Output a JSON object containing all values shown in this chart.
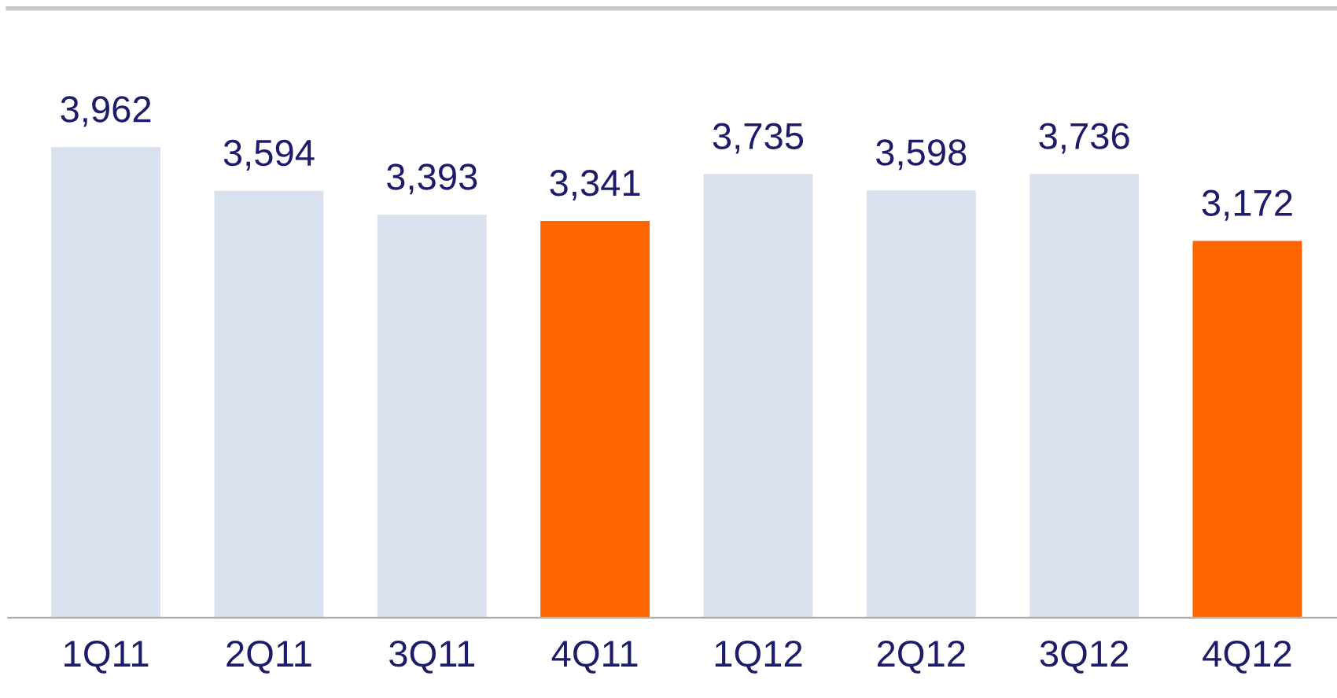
{
  "chart_data": {
    "type": "bar",
    "categories": [
      "1Q11",
      "2Q11",
      "3Q11",
      "4Q11",
      "1Q12",
      "2Q12",
      "3Q12",
      "4Q12"
    ],
    "values": [
      3962,
      3594,
      3393,
      3341,
      3735,
      3598,
      3736,
      3172
    ],
    "colors": [
      "#d9e0ee",
      "#d9e0ee",
      "#d9e0ee",
      "#ff6600",
      "#d9e0ee",
      "#d9e0ee",
      "#d9e0ee",
      "#ff6600"
    ],
    "value_labels": [
      "3,962",
      "3,594",
      "3,393",
      "3,341",
      "3,735",
      "3,598",
      "3,736",
      "3,172"
    ],
    "grid": false,
    "legend": false
  }
}
